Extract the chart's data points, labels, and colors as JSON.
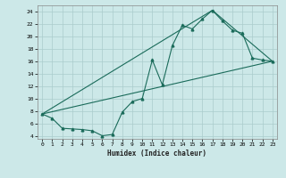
{
  "xlabel": "Humidex (Indice chaleur)",
  "bg_color": "#cce8e8",
  "grid_color": "#aacccc",
  "line_color": "#1a6b5a",
  "xlim": [
    -0.5,
    23.5
  ],
  "ylim": [
    3.5,
    25.0
  ],
  "xticks": [
    0,
    1,
    2,
    3,
    4,
    5,
    6,
    7,
    8,
    9,
    10,
    11,
    12,
    13,
    14,
    15,
    16,
    17,
    18,
    19,
    20,
    21,
    22,
    23
  ],
  "yticks": [
    4,
    6,
    8,
    10,
    12,
    14,
    16,
    18,
    20,
    22,
    24
  ],
  "series1_x": [
    0,
    1,
    2,
    3,
    4,
    5,
    6,
    7,
    8,
    9,
    10,
    11,
    12,
    13,
    14,
    15,
    16,
    17,
    18,
    19,
    20,
    21,
    22,
    23
  ],
  "series1_y": [
    7.5,
    6.8,
    5.2,
    5.1,
    5.0,
    4.8,
    4.0,
    4.2,
    7.8,
    9.5,
    10.0,
    16.2,
    12.2,
    18.5,
    21.8,
    21.2,
    22.8,
    24.2,
    22.5,
    21.0,
    20.5,
    16.5,
    16.2,
    16.0
  ],
  "series2_x": [
    0,
    23
  ],
  "series2_y": [
    7.5,
    16.0
  ],
  "series3_x": [
    0,
    17,
    23
  ],
  "series3_y": [
    7.5,
    24.2,
    16.0
  ]
}
